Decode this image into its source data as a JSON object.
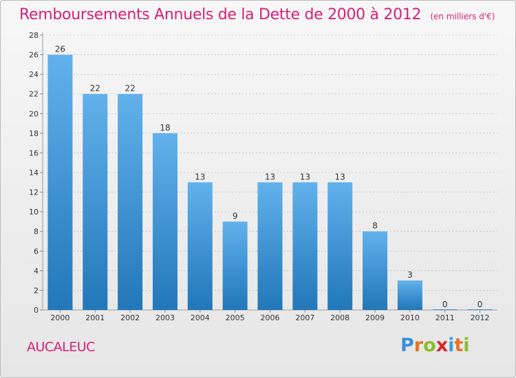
{
  "header": {
    "title": "Remboursements Annuels de la Dette de 2000 à 2012",
    "unit": "(en milliers d'€)"
  },
  "footer": {
    "place": "AUCALEUC",
    "logo": {
      "letters": [
        "P",
        "r",
        "o",
        "x",
        "i",
        "t",
        "i"
      ],
      "colors": [
        "#3a8fd8",
        "#e0742a",
        "#8cbe2f",
        "#d8232a",
        "#3aa0d8",
        "#e0742a",
        "#8cbe2f"
      ]
    }
  },
  "colors": {
    "bar_light": "#62b1ec",
    "bar_dark": "#2177b9",
    "title": "#d61f78",
    "axis_text": "#333333",
    "grid": "#b0b0b0"
  },
  "chart_data": {
    "type": "bar",
    "title": "Remboursements Annuels de la Dette de 2000 à 2012",
    "subtitle": "(en milliers d'€)",
    "xlabel": "",
    "ylabel": "",
    "categories": [
      "2000",
      "2001",
      "2002",
      "2003",
      "2004",
      "2005",
      "2006",
      "2007",
      "2008",
      "2009",
      "2010",
      "2011",
      "2012"
    ],
    "values": [
      26,
      22,
      22,
      18,
      13,
      9,
      13,
      13,
      13,
      8,
      3,
      0,
      0
    ],
    "ylim": [
      0,
      28
    ],
    "yticks": [
      0,
      2,
      4,
      6,
      8,
      10,
      12,
      14,
      16,
      18,
      20,
      22,
      24,
      26,
      28
    ],
    "grid": true,
    "data_labels": true
  }
}
